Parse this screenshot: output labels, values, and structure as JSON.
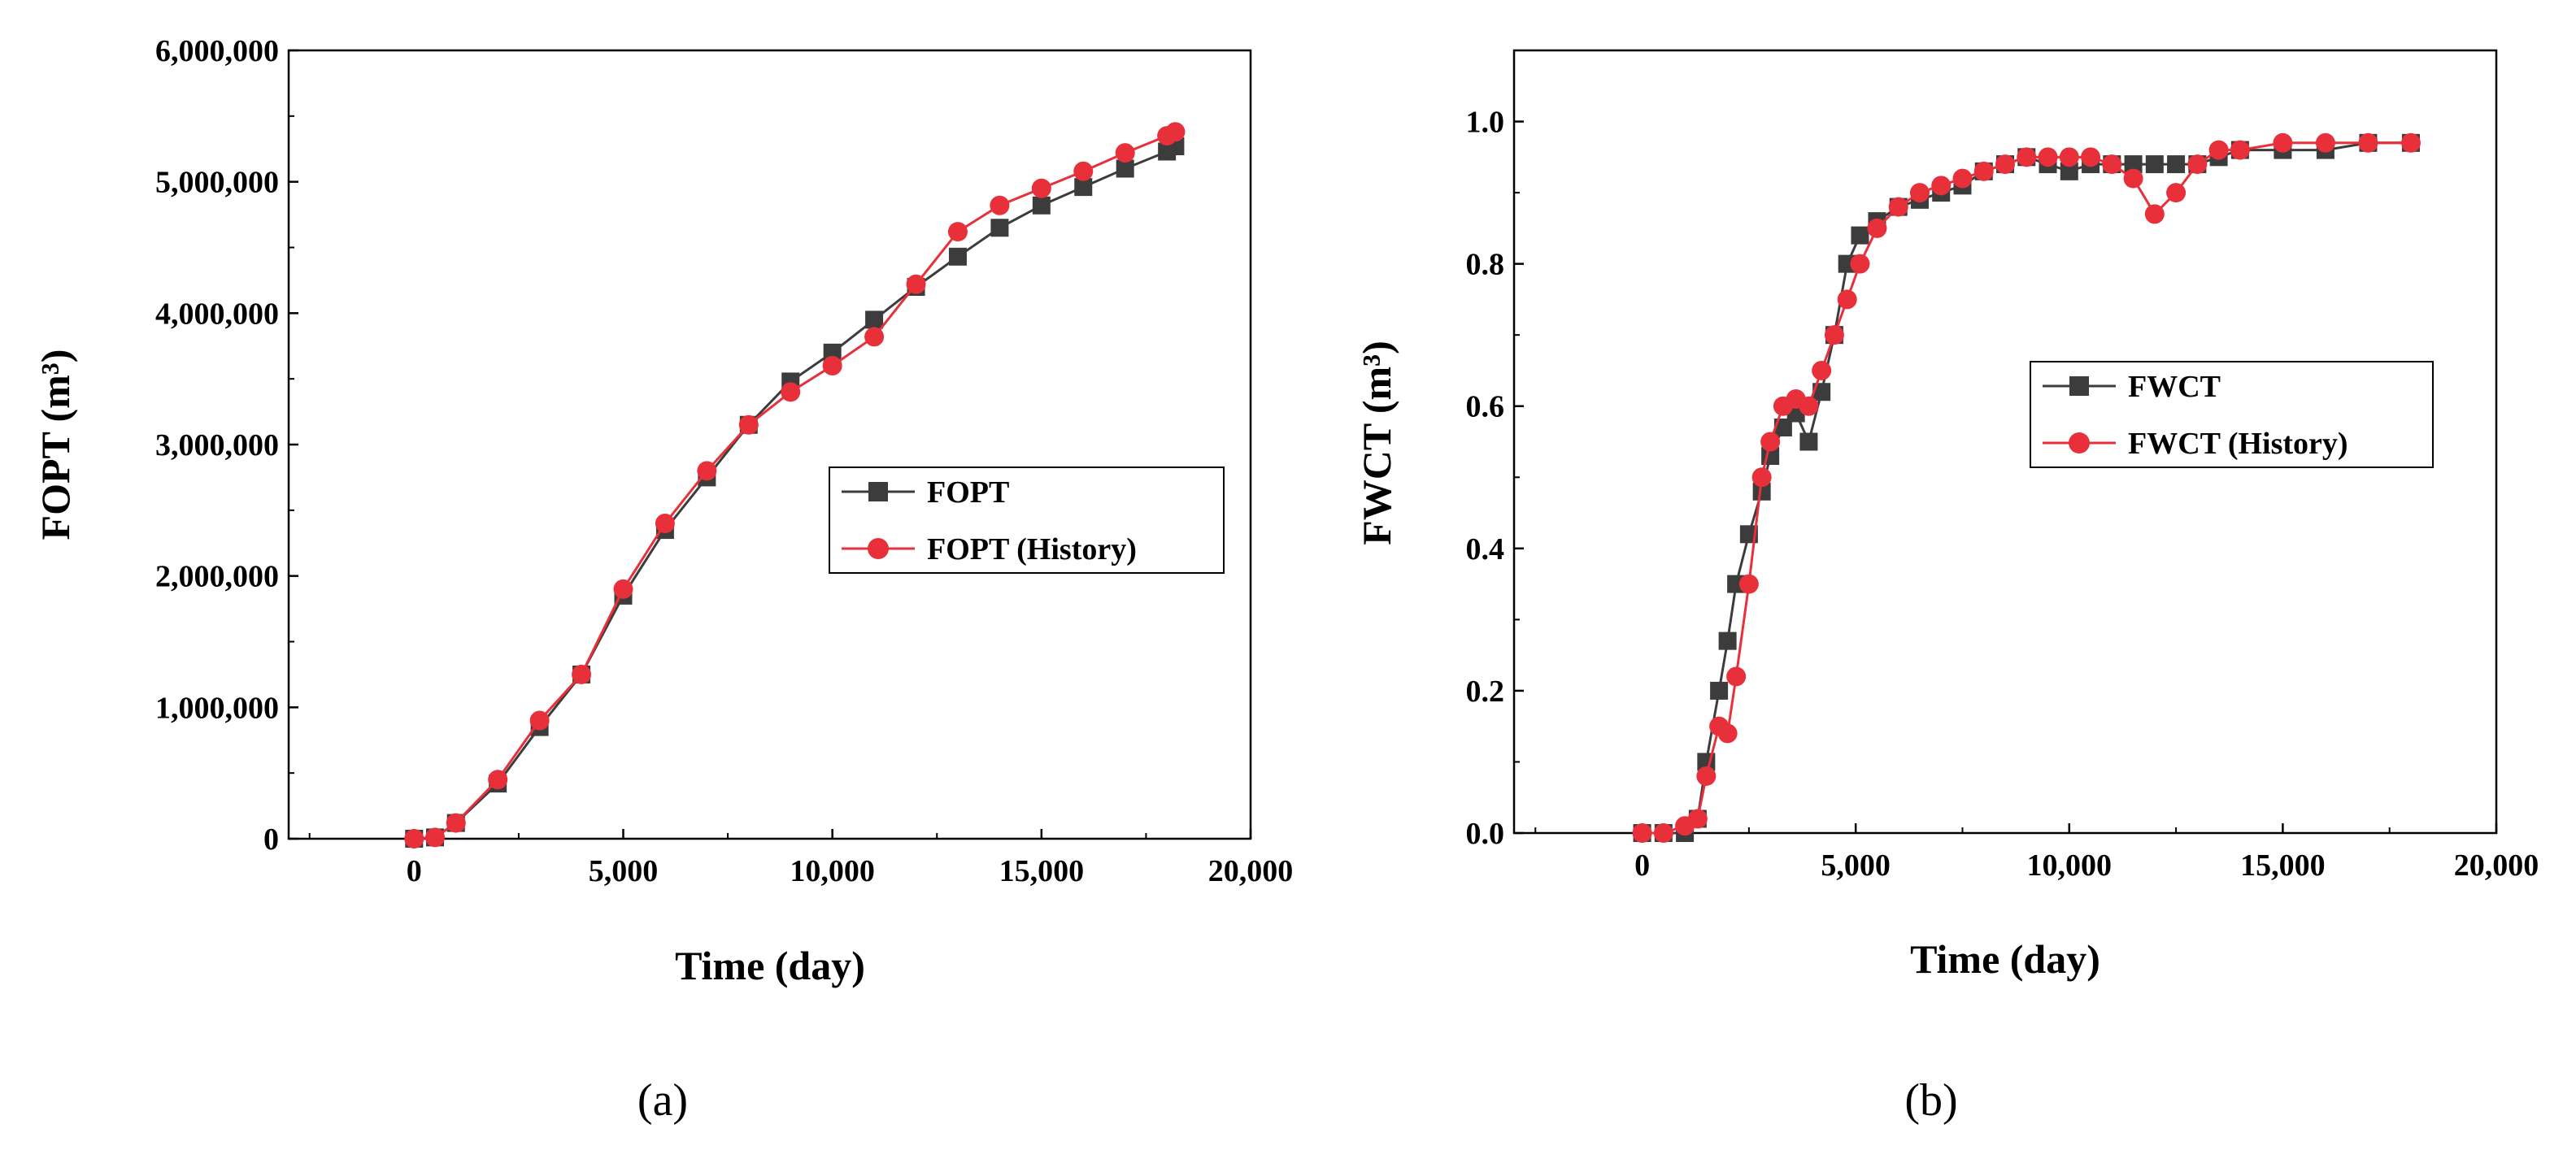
{
  "chart_data": [
    {
      "panel_label": "(a)",
      "type": "line",
      "xlabel": "Time (day)",
      "ylabel": "FOPT (m³)",
      "xlim": [
        -3000,
        20000
      ],
      "ylim": [
        0,
        6000000
      ],
      "xticks": [
        0,
        5000,
        10000,
        15000,
        20000
      ],
      "xtick_labels": [
        "0",
        "5,000",
        "10,000",
        "15,000",
        "20,000"
      ],
      "yticks": [
        0,
        1000000,
        2000000,
        3000000,
        4000000,
        5000000,
        6000000
      ],
      "ytick_labels": [
        "0",
        "1,000,000",
        "2,000,000",
        "3,000,000",
        "4,000,000",
        "5,000,000",
        "6,000,000"
      ],
      "legend": "center-right",
      "grid": false,
      "series": [
        {
          "name": "FOPT",
          "color": "#3c3c3c",
          "marker": "square",
          "x": [
            0,
            500,
            1000,
            2000,
            3000,
            4000,
            5000,
            6000,
            7000,
            8000,
            9000,
            10000,
            11000,
            12000,
            13000,
            14000,
            15000,
            16000,
            17000,
            18000,
            18200
          ],
          "y": [
            0,
            10000,
            120000,
            420000,
            850000,
            1250000,
            1850000,
            2350000,
            2750000,
            3150000,
            3480000,
            3700000,
            3950000,
            4200000,
            4430000,
            4650000,
            4820000,
            4960000,
            5100000,
            5230000,
            5270000
          ]
        },
        {
          "name": "FOPT (History)",
          "color": "#e8303a",
          "marker": "circle",
          "x": [
            0,
            500,
            1000,
            2000,
            3000,
            4000,
            5000,
            6000,
            7000,
            8000,
            9000,
            10000,
            11000,
            12000,
            13000,
            14000,
            15000,
            16000,
            17000,
            18000,
            18200
          ],
          "y": [
            0,
            10000,
            120000,
            450000,
            900000,
            1250000,
            1900000,
            2400000,
            2800000,
            3150000,
            3400000,
            3600000,
            3820000,
            4220000,
            4620000,
            4820000,
            4950000,
            5080000,
            5220000,
            5350000,
            5380000
          ]
        }
      ]
    },
    {
      "panel_label": "(b)",
      "type": "scatter",
      "xlabel": "Time (day)",
      "ylabel": "FWCT (m³)",
      "xlim": [
        -3000,
        20000
      ],
      "ylim": [
        0,
        1.1
      ],
      "xticks": [
        0,
        5000,
        10000,
        15000,
        20000
      ],
      "xtick_labels": [
        "0",
        "5,000",
        "10,000",
        "15,000",
        "20,000"
      ],
      "yticks": [
        0,
        0.2,
        0.4,
        0.6,
        0.8,
        1.0
      ],
      "ytick_labels": [
        "0.0",
        "0.2",
        "0.4",
        "0.6",
        "0.8",
        "1.0"
      ],
      "legend": "center-right",
      "grid": false,
      "series": [
        {
          "name": "FWCT",
          "color": "#3c3c3c",
          "marker": "square",
          "x": [
            0,
            500,
            1000,
            1300,
            1500,
            1800,
            2000,
            2200,
            2500,
            2800,
            3000,
            3300,
            3600,
            3900,
            4200,
            4500,
            4800,
            5100,
            5500,
            6000,
            6500,
            7000,
            7500,
            8000,
            8500,
            9000,
            9500,
            10000,
            10500,
            11000,
            11500,
            12000,
            12500,
            13000,
            13500,
            14000,
            15000,
            16000,
            17000,
            18000
          ],
          "y": [
            0,
            0,
            0,
            0.02,
            0.1,
            0.2,
            0.27,
            0.35,
            0.42,
            0.48,
            0.53,
            0.57,
            0.59,
            0.55,
            0.62,
            0.7,
            0.8,
            0.84,
            0.86,
            0.88,
            0.89,
            0.9,
            0.91,
            0.93,
            0.94,
            0.95,
            0.94,
            0.93,
            0.94,
            0.94,
            0.94,
            0.94,
            0.94,
            0.94,
            0.95,
            0.96,
            0.96,
            0.96,
            0.97,
            0.97
          ]
        },
        {
          "name": "FWCT (History)",
          "color": "#e8303a",
          "marker": "circle",
          "x": [
            0,
            500,
            1000,
            1300,
            1500,
            1800,
            2000,
            2200,
            2500,
            2800,
            3000,
            3300,
            3600,
            3900,
            4200,
            4500,
            4800,
            5100,
            5500,
            6000,
            6500,
            7000,
            7500,
            8000,
            8500,
            9000,
            9500,
            10000,
            10500,
            11000,
            11500,
            12000,
            12500,
            13000,
            13500,
            14000,
            15000,
            16000,
            17000,
            18000
          ],
          "y": [
            0,
            0,
            0.01,
            0.02,
            0.08,
            0.15,
            0.14,
            0.22,
            0.35,
            0.5,
            0.55,
            0.6,
            0.61,
            0.6,
            0.65,
            0.7,
            0.75,
            0.8,
            0.85,
            0.88,
            0.9,
            0.91,
            0.92,
            0.93,
            0.94,
            0.95,
            0.95,
            0.95,
            0.95,
            0.94,
            0.92,
            0.87,
            0.9,
            0.94,
            0.96,
            0.96,
            0.97,
            0.97,
            0.97,
            0.97
          ]
        }
      ]
    }
  ]
}
